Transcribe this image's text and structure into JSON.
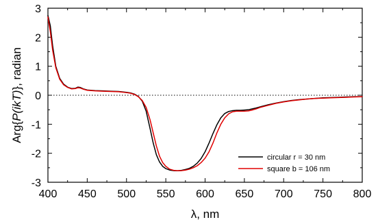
{
  "chart_data": {
    "type": "line",
    "title": "",
    "xlabel": "λ, nm",
    "ylabel": {
      "prefix": "Arg{",
      "italic": "P(ikT)",
      "suffix": "}, radian"
    },
    "xlim": [
      400,
      800
    ],
    "ylim": [
      -3,
      3
    ],
    "x_ticks": [
      400,
      450,
      500,
      550,
      600,
      650,
      700,
      750,
      800
    ],
    "y_ticks": [
      -3,
      -2,
      -1,
      0,
      1,
      2,
      3
    ],
    "y_tick_labels": [
      "-3",
      "-2",
      "-1",
      "0",
      "1",
      "2",
      "3"
    ],
    "reference_line": {
      "y": 0,
      "style": "dotted"
    },
    "legend_position": "lower-right",
    "grid": false,
    "series": [
      {
        "name": "circular r = 30 nm",
        "color": "#000000",
        "x": [
          400,
          403,
          406,
          410,
          415,
          420,
          425,
          430,
          435,
          438,
          441,
          445,
          450,
          460,
          470,
          480,
          490,
          500,
          505,
          510,
          515,
          520,
          525,
          530,
          534,
          538,
          542,
          546,
          550,
          555,
          560,
          565,
          570,
          575,
          580,
          585,
          590,
          595,
          600,
          605,
          610,
          615,
          620,
          625,
          630,
          635,
          640,
          645,
          650,
          655,
          660,
          665,
          670,
          680,
          690,
          700,
          710,
          720,
          730,
          740,
          750,
          760,
          770,
          780,
          790,
          800
        ],
        "y": [
          2.75,
          2.4,
          1.7,
          1.0,
          0.58,
          0.38,
          0.28,
          0.23,
          0.24,
          0.28,
          0.27,
          0.22,
          0.18,
          0.16,
          0.15,
          0.14,
          0.13,
          0.1,
          0.08,
          0.04,
          -0.04,
          -0.2,
          -0.55,
          -1.15,
          -1.65,
          -2.05,
          -2.3,
          -2.45,
          -2.53,
          -2.58,
          -2.6,
          -2.6,
          -2.59,
          -2.56,
          -2.52,
          -2.45,
          -2.34,
          -2.18,
          -1.95,
          -1.65,
          -1.32,
          -1.02,
          -0.78,
          -0.63,
          -0.56,
          -0.53,
          -0.52,
          -0.52,
          -0.51,
          -0.5,
          -0.47,
          -0.44,
          -0.4,
          -0.33,
          -0.27,
          -0.22,
          -0.18,
          -0.15,
          -0.13,
          -0.11,
          -0.09,
          -0.08,
          -0.07,
          -0.06,
          -0.05,
          -0.05
        ]
      },
      {
        "name": "square b = 106 nm",
        "color": "#e00000",
        "x": [
          400,
          403,
          406,
          410,
          415,
          420,
          425,
          430,
          435,
          438,
          441,
          445,
          450,
          460,
          470,
          480,
          490,
          500,
          505,
          510,
          515,
          520,
          525,
          530,
          534,
          538,
          542,
          546,
          550,
          555,
          560,
          565,
          570,
          575,
          580,
          585,
          590,
          595,
          600,
          605,
          610,
          615,
          620,
          625,
          630,
          635,
          640,
          645,
          650,
          655,
          660,
          665,
          670,
          680,
          690,
          700,
          710,
          720,
          730,
          740,
          750,
          760,
          770,
          780,
          790,
          800
        ],
        "y": [
          2.7,
          2.2,
          1.55,
          0.95,
          0.55,
          0.36,
          0.27,
          0.22,
          0.23,
          0.26,
          0.25,
          0.21,
          0.17,
          0.15,
          0.14,
          0.13,
          0.12,
          0.09,
          0.07,
          0.03,
          -0.05,
          -0.18,
          -0.42,
          -0.85,
          -1.3,
          -1.75,
          -2.1,
          -2.32,
          -2.45,
          -2.55,
          -2.59,
          -2.6,
          -2.6,
          -2.58,
          -2.55,
          -2.5,
          -2.43,
          -2.32,
          -2.17,
          -1.95,
          -1.65,
          -1.3,
          -1.0,
          -0.78,
          -0.64,
          -0.57,
          -0.55,
          -0.55,
          -0.55,
          -0.54,
          -0.51,
          -0.47,
          -0.42,
          -0.35,
          -0.28,
          -0.23,
          -0.19,
          -0.16,
          -0.13,
          -0.11,
          -0.1,
          -0.09,
          -0.08,
          -0.07,
          -0.06,
          -0.05
        ]
      }
    ]
  }
}
